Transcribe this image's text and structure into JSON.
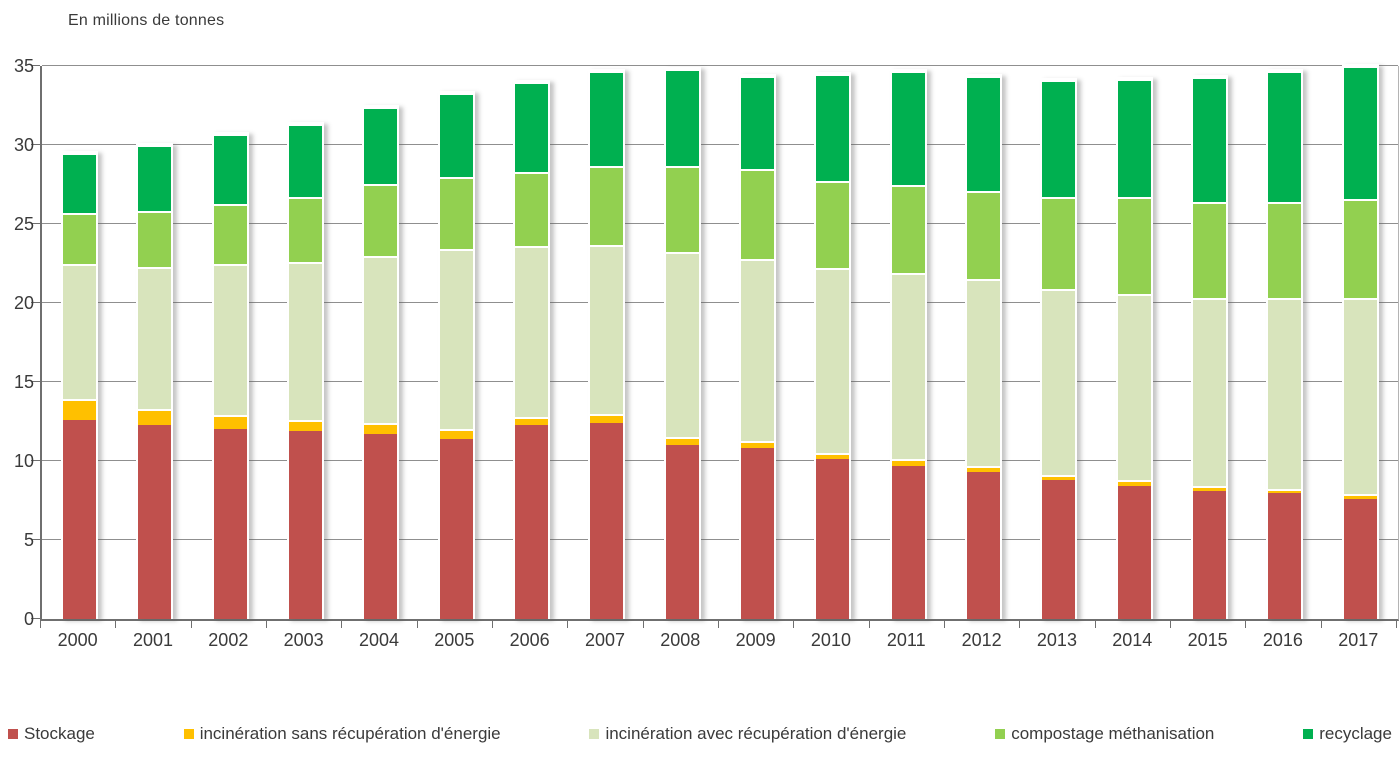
{
  "chart_data": {
    "type": "bar",
    "stacked": true,
    "title": "En millions de tonnes",
    "xlabel": "",
    "ylabel": "En millions de tonnes",
    "ylim": [
      0,
      35
    ],
    "ytick_step": 5,
    "yticks": [
      "0",
      "5",
      "10",
      "15",
      "20",
      "25",
      "30",
      "35"
    ],
    "grid": "horizontal",
    "legend_position": "bottom",
    "categories": [
      "2000",
      "2001",
      "2002",
      "2003",
      "2004",
      "2005",
      "2006",
      "2007",
      "2008",
      "2009",
      "2010",
      "2011",
      "2012",
      "2013",
      "2014",
      "2015",
      "2016",
      "2017"
    ],
    "series": [
      {
        "name": "Stockage",
        "color": "#c0504d",
        "values": [
          12.6,
          12.3,
          12.0,
          11.9,
          11.7,
          11.4,
          12.3,
          12.4,
          11.0,
          10.8,
          10.1,
          9.7,
          9.3,
          8.8,
          8.4,
          8.1,
          8.0,
          7.6
        ]
      },
      {
        "name": "incinération sans récupération d'énergie",
        "color": "#ffc000",
        "values": [
          1.3,
          1.0,
          0.9,
          0.7,
          0.7,
          0.6,
          0.5,
          0.6,
          0.5,
          0.5,
          0.4,
          0.4,
          0.4,
          0.3,
          0.4,
          0.3,
          0.2,
          0.3
        ]
      },
      {
        "name": "incinération avec récupération d'énergie",
        "color": "#d8e4bc",
        "values": [
          8.6,
          9.0,
          9.6,
          10.0,
          10.6,
          11.4,
          10.8,
          10.7,
          11.7,
          11.5,
          11.7,
          11.8,
          11.8,
          11.8,
          11.8,
          11.9,
          12.1,
          12.4
        ]
      },
      {
        "name": "compostage méthanisation",
        "color": "#92d050",
        "values": [
          3.2,
          3.5,
          3.8,
          4.1,
          4.5,
          4.6,
          4.7,
          5.0,
          5.5,
          5.7,
          5.5,
          5.6,
          5.6,
          5.8,
          6.1,
          6.1,
          6.1,
          6.3
        ]
      },
      {
        "name": "recyclage",
        "color": "#00b050",
        "values": [
          3.8,
          4.2,
          4.4,
          4.6,
          4.9,
          5.3,
          5.7,
          6.0,
          6.1,
          5.9,
          6.8,
          7.2,
          7.3,
          7.4,
          7.5,
          7.9,
          8.3,
          8.4
        ]
      }
    ],
    "totals": [
      29.5,
      30.0,
      30.7,
      31.3,
      32.4,
      33.3,
      34.0,
      34.7,
      34.8,
      34.4,
      34.5,
      34.7,
      34.4,
      34.1,
      34.2,
      34.3,
      34.7,
      35.0
    ]
  },
  "style_colors": {
    "gridline": "#8f8f8f",
    "axis": "#6f6f6f",
    "text": "#3a3a3a",
    "bar_separator": "#ffffff"
  }
}
